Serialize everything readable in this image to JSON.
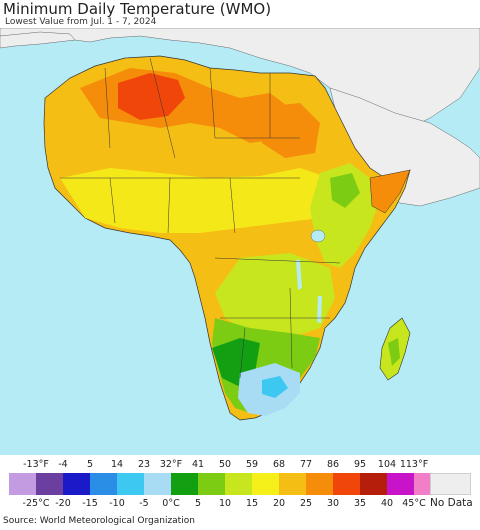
{
  "title": "Minimum Daily Temperature (WMO)",
  "subtitle": "Lowest Value from Jul. 1 - 7, 2024",
  "source": "Source: World Meteorological Organization",
  "legend": {
    "f_labels": [
      "-13°F",
      "-4",
      "5",
      "14",
      "23",
      "32°F",
      "41",
      "50",
      "59",
      "68",
      "77",
      "86",
      "95",
      "104",
      "113°F"
    ],
    "c_labels": [
      "-25°C",
      "-20",
      "-15",
      "-10",
      "-5",
      "0°C",
      "5",
      "10",
      "15",
      "20",
      "25",
      "30",
      "35",
      "40",
      "45°C"
    ],
    "colors": [
      "#c39be0",
      "#6b3fa0",
      "#1a1ac8",
      "#2a8de6",
      "#3cc8f0",
      "#a8dcf5",
      "#12a012",
      "#7ccc14",
      "#c8e61e",
      "#f5f01a",
      "#f5be14",
      "#f58c0a",
      "#f0460a",
      "#b41e0a",
      "#c814c8",
      "#f07fc8"
    ],
    "no_data_label": "No Data",
    "no_data_color": "#eeeeee"
  },
  "map_colors": {
    "ocean": "#b4ebf5",
    "outside_land": "#eeeeee",
    "borders": "#333333"
  }
}
